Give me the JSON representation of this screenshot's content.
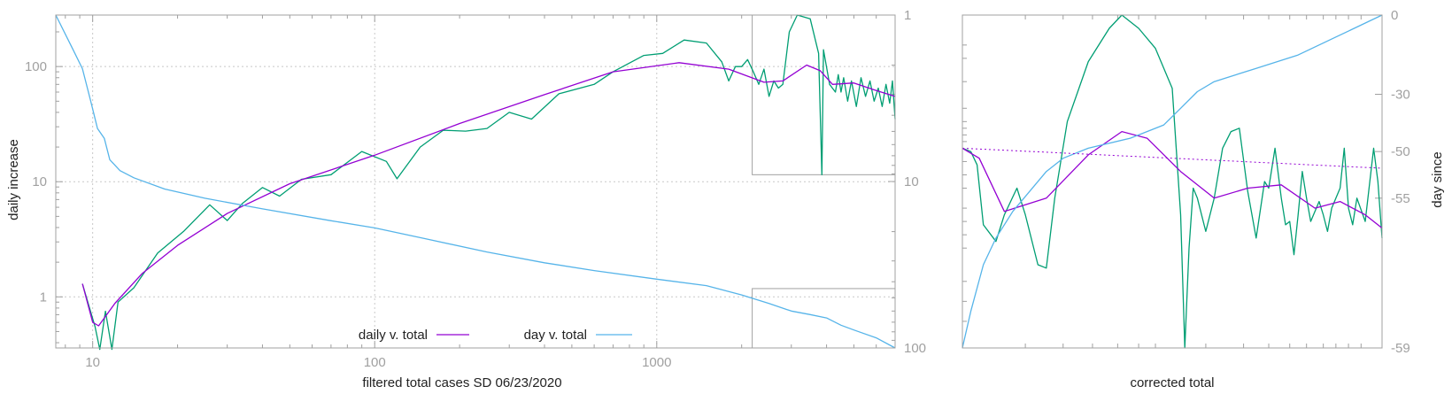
{
  "chart_data": [
    {
      "type": "line",
      "xlabel": "filtered total cases SD 06/23/2020",
      "ylabel": "daily increase",
      "xscale": "log",
      "yscale": "log",
      "xlim": [
        7.4,
        7000
      ],
      "ylim": [
        0.36,
        280
      ],
      "y2lim": [
        1,
        100
      ],
      "y2scale": "log",
      "y2_reversed": true,
      "grid": true,
      "legend": "bottom-center",
      "x_ticks": [
        "10",
        "100",
        "1000"
      ],
      "y_ticks": [
        "1",
        "10",
        "100"
      ],
      "y2_ticks": [
        "1",
        "10",
        "100"
      ],
      "colors": {
        "green": "#009e73",
        "purple": "#9400d3",
        "blue": "#56b4e9"
      },
      "insets": [
        {
          "x_from": 2180,
          "x_to": 7000,
          "y_from": 11.5,
          "y_to": 280
        },
        {
          "x_from": 2180,
          "x_to": 7000,
          "y_from": 0.36,
          "y_to": 1.18
        }
      ],
      "series": [
        {
          "name": "",
          "color": "#009e73",
          "points": [
            [
              9.2,
              1.3
            ],
            [
              10.2,
              0.55
            ],
            [
              10.6,
              0.35
            ],
            [
              11.1,
              0.75
            ],
            [
              11.7,
              0.35
            ],
            [
              12.3,
              0.9
            ],
            [
              14,
              1.2
            ],
            [
              17,
              2.4
            ],
            [
              21,
              3.7
            ],
            [
              26,
              6.3
            ],
            [
              30,
              4.6
            ],
            [
              34,
              6.5
            ],
            [
              40,
              8.9
            ],
            [
              46,
              7.5
            ],
            [
              55,
              10.5
            ],
            [
              70,
              11.5
            ],
            [
              90,
              18.3
            ],
            [
              110,
              15
            ],
            [
              120,
              10.6
            ],
            [
              145,
              20
            ],
            [
              175,
              28
            ],
            [
              210,
              27.5
            ],
            [
              250,
              29
            ],
            [
              300,
              40
            ],
            [
              360,
              35
            ],
            [
              450,
              58
            ],
            [
              600,
              70
            ],
            [
              700,
              90
            ],
            [
              900,
              125
            ],
            [
              1050,
              130
            ],
            [
              1250,
              170
            ],
            [
              1500,
              160
            ],
            [
              1700,
              110
            ],
            [
              1800,
              75
            ],
            [
              1900,
              100
            ],
            [
              2000,
              100
            ],
            [
              2100,
              115
            ],
            [
              2200,
              90
            ],
            [
              2300,
              70
            ],
            [
              2400,
              95
            ],
            [
              2500,
              55
            ],
            [
              2600,
              75
            ],
            [
              2700,
              65
            ],
            [
              2800,
              70
            ],
            [
              2950,
              200
            ],
            [
              3150,
              280
            ],
            [
              3500,
              260
            ],
            [
              3750,
              130
            ],
            [
              3850,
              11.5
            ],
            [
              3900,
              140
            ],
            [
              4100,
              70
            ],
            [
              4300,
              60
            ],
            [
              4400,
              85
            ],
            [
              4500,
              60
            ],
            [
              4600,
              80
            ],
            [
              4750,
              50
            ],
            [
              4900,
              75
            ],
            [
              5100,
              45
            ],
            [
              5300,
              80
            ],
            [
              5500,
              55
            ],
            [
              5700,
              75
            ],
            [
              5900,
              50
            ],
            [
              6100,
              65
            ],
            [
              6300,
              45
            ],
            [
              6500,
              70
            ],
            [
              6700,
              48
            ],
            [
              6850,
              75
            ],
            [
              7000,
              35
            ]
          ]
        },
        {
          "name": "daily v. total",
          "color": "#9400d3",
          "points": [
            [
              9.2,
              1.3
            ],
            [
              10,
              0.6
            ],
            [
              10.5,
              0.56
            ],
            [
              12,
              0.88
            ],
            [
              15,
              1.6
            ],
            [
              20,
              2.8
            ],
            [
              30,
              5.3
            ],
            [
              50,
              9.6
            ],
            [
              100,
              17
            ],
            [
              200,
              32
            ],
            [
              400,
              57
            ],
            [
              700,
              90
            ],
            [
              1200,
              108
            ],
            [
              1800,
              95
            ],
            [
              2400,
              73
            ],
            [
              2800,
              75
            ],
            [
              3400,
              103
            ],
            [
              3800,
              92
            ],
            [
              4200,
              70
            ],
            [
              5000,
              72
            ],
            [
              6000,
              62
            ],
            [
              7000,
              55
            ]
          ]
        },
        {
          "name": "day v. total",
          "color": "#56b4e9",
          "axis": "y2",
          "points": [
            [
              7.4,
              1
            ],
            [
              8.5,
              1.6
            ],
            [
              9.2,
              2.1
            ],
            [
              9.8,
              3.2
            ],
            [
              10.4,
              4.8
            ],
            [
              11,
              5.5
            ],
            [
              11.5,
              7.4
            ],
            [
              12.5,
              8.6
            ],
            [
              14,
              9.5
            ],
            [
              18,
              11.1
            ],
            [
              25,
              12.6
            ],
            [
              40,
              14.6
            ],
            [
              70,
              17.2
            ],
            [
              100,
              19
            ],
            [
              150,
              22
            ],
            [
              250,
              26.5
            ],
            [
              400,
              30.8
            ],
            [
              600,
              34.3
            ],
            [
              1000,
              38.6
            ],
            [
              1500,
              42.2
            ],
            [
              2000,
              48
            ],
            [
              2500,
              54
            ],
            [
              3000,
              60
            ],
            [
              3500,
              63
            ],
            [
              4000,
              66
            ],
            [
              4500,
              73
            ],
            [
              5000,
              78
            ],
            [
              6000,
              87
            ],
            [
              7000,
              100
            ]
          ]
        }
      ]
    },
    {
      "type": "line",
      "xlabel": "corrected total",
      "ylabel": "day since",
      "y2_ticks": [
        "0",
        "-30",
        "-50",
        "-55",
        "-59"
      ],
      "grid": false,
      "series": [
        {
          "name": "",
          "color": "#009e73",
          "points": [
            [
              0,
              40
            ],
            [
              0.02,
              41
            ],
            [
              0.035,
              45
            ],
            [
              0.05,
              63
            ],
            [
              0.08,
              68
            ],
            [
              0.1,
              60
            ],
            [
              0.13,
              52
            ],
            [
              0.15,
              60
            ],
            [
              0.18,
              75
            ],
            [
              0.2,
              76
            ],
            [
              0.22,
              55
            ],
            [
              0.25,
              32
            ],
            [
              0.3,
              14
            ],
            [
              0.35,
              4
            ],
            [
              0.38,
              0
            ],
            [
              0.42,
              4
            ],
            [
              0.46,
              10
            ],
            [
              0.5,
              22
            ],
            [
              0.52,
              60
            ],
            [
              0.53,
              100
            ],
            [
              0.54,
              70
            ],
            [
              0.55,
              52
            ],
            [
              0.56,
              55
            ],
            [
              0.58,
              65
            ],
            [
              0.6,
              55
            ],
            [
              0.62,
              40
            ],
            [
              0.64,
              35
            ],
            [
              0.66,
              34
            ],
            [
              0.68,
              53
            ],
            [
              0.7,
              67
            ],
            [
              0.72,
              50
            ],
            [
              0.73,
              52
            ],
            [
              0.745,
              40
            ],
            [
              0.76,
              55
            ],
            [
              0.77,
              63
            ],
            [
              0.78,
              62
            ],
            [
              0.79,
              72
            ],
            [
              0.8,
              60
            ],
            [
              0.81,
              47
            ],
            [
              0.82,
              55
            ],
            [
              0.83,
              62
            ],
            [
              0.85,
              56
            ],
            [
              0.86,
              60
            ],
            [
              0.87,
              65
            ],
            [
              0.88,
              58
            ],
            [
              0.9,
              52
            ],
            [
              0.91,
              40
            ],
            [
              0.92,
              58
            ],
            [
              0.93,
              63
            ],
            [
              0.94,
              55
            ],
            [
              0.96,
              62
            ],
            [
              0.98,
              40
            ],
            [
              0.99,
              50
            ],
            [
              1,
              67
            ]
          ]
        },
        {
          "name": "",
          "color": "#9400d3",
          "points": [
            [
              0,
              40
            ],
            [
              0.04,
              43
            ],
            [
              0.1,
              59
            ],
            [
              0.2,
              55
            ],
            [
              0.3,
              42
            ],
            [
              0.38,
              35
            ],
            [
              0.44,
              37
            ],
            [
              0.52,
              47
            ],
            [
              0.6,
              55
            ],
            [
              0.68,
              52
            ],
            [
              0.76,
              51
            ],
            [
              0.84,
              58
            ],
            [
              0.9,
              56
            ],
            [
              0.96,
              60
            ],
            [
              1,
              64
            ]
          ]
        },
        {
          "name": "",
          "color": "#56b4e9",
          "points": [
            [
              0,
              100
            ],
            [
              0.02,
              89
            ],
            [
              0.05,
              75
            ],
            [
              0.08,
              67
            ],
            [
              0.12,
              59
            ],
            [
              0.16,
              53
            ],
            [
              0.2,
              47
            ],
            [
              0.24,
              43
            ],
            [
              0.3,
              40
            ],
            [
              0.4,
              37
            ],
            [
              0.48,
              33
            ],
            [
              0.52,
              28
            ],
            [
              0.56,
              23
            ],
            [
              0.6,
              20
            ],
            [
              0.7,
              16
            ],
            [
              0.8,
              12
            ],
            [
              0.9,
              6
            ],
            [
              1,
              0
            ]
          ]
        },
        {
          "name": "",
          "color": "#9400d3",
          "dashed": true,
          "points": [
            [
              0,
              40
            ],
            [
              1,
              46
            ]
          ]
        }
      ]
    }
  ]
}
